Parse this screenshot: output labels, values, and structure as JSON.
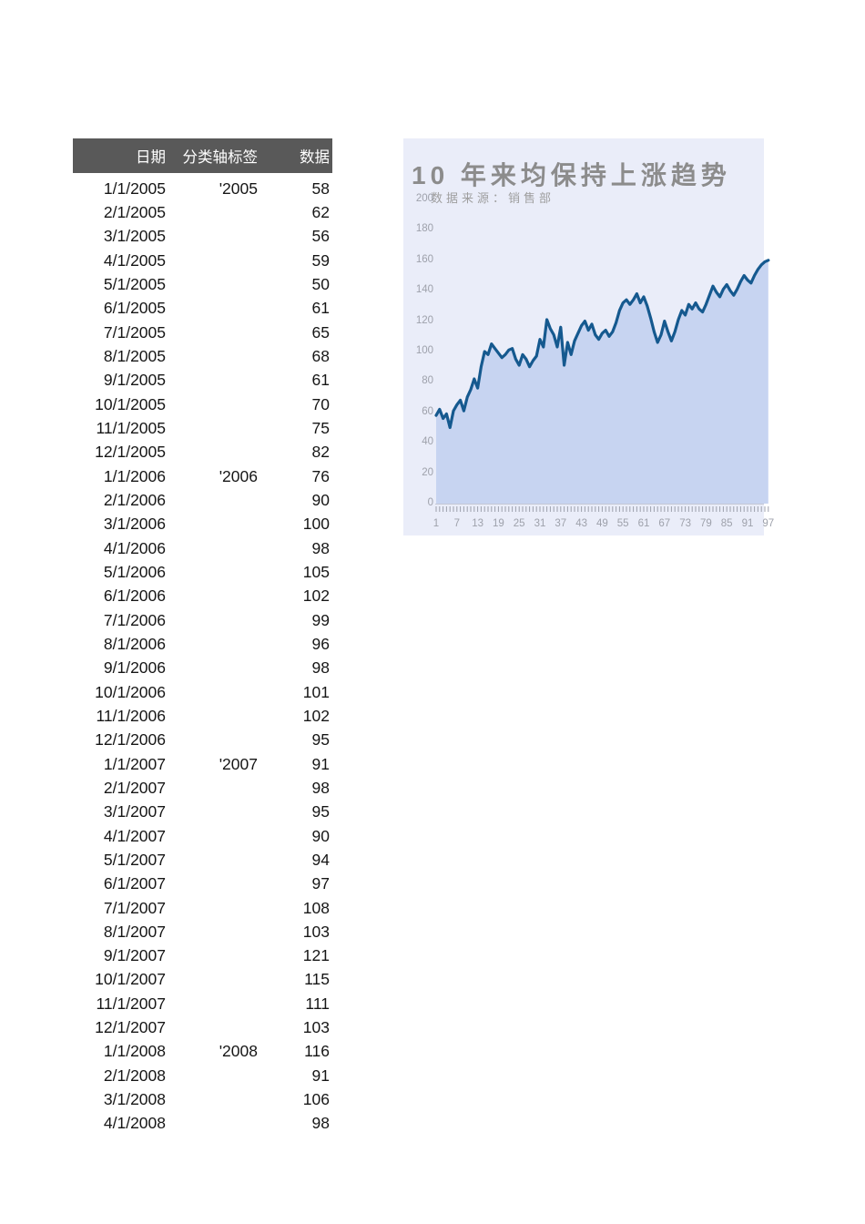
{
  "table": {
    "headers": [
      "日期",
      "分类轴标签",
      "数据"
    ],
    "rows": [
      [
        "1/1/2005",
        "'2005",
        "58"
      ],
      [
        "2/1/2005",
        "",
        "62"
      ],
      [
        "3/1/2005",
        "",
        "56"
      ],
      [
        "4/1/2005",
        "",
        "59"
      ],
      [
        "5/1/2005",
        "",
        "50"
      ],
      [
        "6/1/2005",
        "",
        "61"
      ],
      [
        "7/1/2005",
        "",
        "65"
      ],
      [
        "8/1/2005",
        "",
        "68"
      ],
      [
        "9/1/2005",
        "",
        "61"
      ],
      [
        "10/1/2005",
        "",
        "70"
      ],
      [
        "11/1/2005",
        "",
        "75"
      ],
      [
        "12/1/2005",
        "",
        "82"
      ],
      [
        "1/1/2006",
        "'2006",
        "76"
      ],
      [
        "2/1/2006",
        "",
        "90"
      ],
      [
        "3/1/2006",
        "",
        "100"
      ],
      [
        "4/1/2006",
        "",
        "98"
      ],
      [
        "5/1/2006",
        "",
        "105"
      ],
      [
        "6/1/2006",
        "",
        "102"
      ],
      [
        "7/1/2006",
        "",
        "99"
      ],
      [
        "8/1/2006",
        "",
        "96"
      ],
      [
        "9/1/2006",
        "",
        "98"
      ],
      [
        "10/1/2006",
        "",
        "101"
      ],
      [
        "11/1/2006",
        "",
        "102"
      ],
      [
        "12/1/2006",
        "",
        "95"
      ],
      [
        "1/1/2007",
        "'2007",
        "91"
      ],
      [
        "2/1/2007",
        "",
        "98"
      ],
      [
        "3/1/2007",
        "",
        "95"
      ],
      [
        "4/1/2007",
        "",
        "90"
      ],
      [
        "5/1/2007",
        "",
        "94"
      ],
      [
        "6/1/2007",
        "",
        "97"
      ],
      [
        "7/1/2007",
        "",
        "108"
      ],
      [
        "8/1/2007",
        "",
        "103"
      ],
      [
        "9/1/2007",
        "",
        "121"
      ],
      [
        "10/1/2007",
        "",
        "115"
      ],
      [
        "11/1/2007",
        "",
        "111"
      ],
      [
        "12/1/2007",
        "",
        "103"
      ],
      [
        "1/1/2008",
        "'2008",
        "116"
      ],
      [
        "2/1/2008",
        "",
        "91"
      ],
      [
        "3/1/2008",
        "",
        "106"
      ],
      [
        "4/1/2008",
        "",
        "98"
      ]
    ]
  },
  "chart": {
    "title": "10 年来均保持上涨趋势",
    "subtitle": "数据来源：销售部",
    "colors": {
      "chart_bg": "#EAEDF9",
      "area_fill": "#C7D4F1",
      "line": "#15598F",
      "title_text": "#8C8C8C",
      "subtitle_text": "#9E9E9E",
      "axis_text": "#9EA1AB",
      "axis_line": "#C4C7D4",
      "tick": "#9CA0AC",
      "table_header_bg": "#595959",
      "table_header_text": "#FFFFFF"
    }
  },
  "chart_data": {
    "type": "area",
    "title": "10 年来均保持上涨趋势",
    "subtitle": "数据来源：销售部",
    "xlabel": "",
    "ylabel": "",
    "ylim": [
      0,
      200
    ],
    "yticks": [
      0,
      20,
      40,
      60,
      80,
      100,
      120,
      140,
      160,
      180,
      200
    ],
    "xticks": [
      1,
      7,
      13,
      19,
      25,
      31,
      37,
      43,
      49,
      55,
      61,
      67,
      73,
      79,
      85,
      91,
      97
    ],
    "grid": false,
    "legend": false,
    "x_start": 1,
    "values": [
      58,
      62,
      56,
      59,
      50,
      61,
      65,
      68,
      61,
      70,
      75,
      82,
      76,
      90,
      100,
      98,
      105,
      102,
      99,
      96,
      98,
      101,
      102,
      95,
      91,
      98,
      95,
      90,
      94,
      97,
      108,
      103,
      121,
      115,
      111,
      103,
      116,
      91,
      106,
      98,
      107,
      112,
      117,
      120,
      114,
      118,
      111,
      108,
      112,
      114,
      110,
      113,
      119,
      127,
      132,
      134,
      131,
      134,
      138,
      132,
      136,
      130,
      122,
      113,
      106,
      111,
      120,
      113,
      107,
      113,
      121,
      127,
      124,
      131,
      128,
      132,
      128,
      126,
      131,
      137,
      143,
      139,
      136,
      141,
      144,
      140,
      137,
      141,
      146,
      150,
      147,
      145,
      150,
      154,
      157,
      159,
      160
    ]
  }
}
